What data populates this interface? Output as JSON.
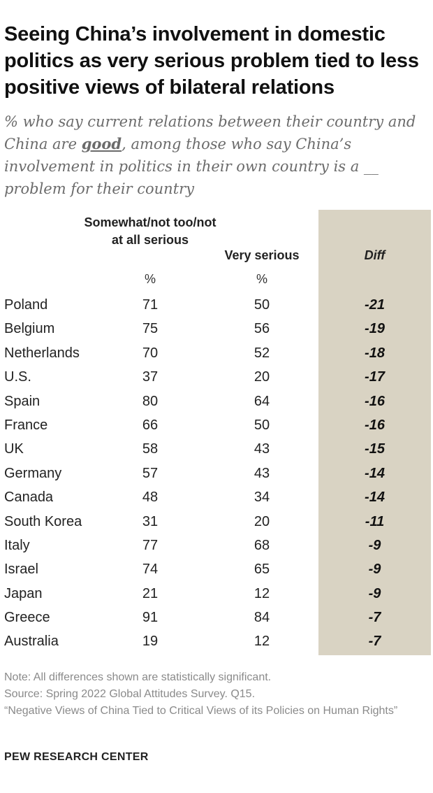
{
  "title": "Seeing China’s involvement in domestic politics as very serious problem tied to less positive views of bilateral relations",
  "subtitle": {
    "part1": "% who say current relations between their country and China are ",
    "emphasis": "good",
    "part2": ", among those who say China’s involvement in politics in their own country is a __ problem for their country"
  },
  "chart_data": {
    "type": "table",
    "columns": [
      "Somewhat/not too/not at all serious",
      "Very serious",
      "Diff"
    ],
    "units": [
      "%",
      "%",
      ""
    ],
    "rows": [
      {
        "country": "Poland",
        "not_serious": "71",
        "very_serious": "50",
        "diff": "-21"
      },
      {
        "country": "Belgium",
        "not_serious": "75",
        "very_serious": "56",
        "diff": "-19"
      },
      {
        "country": "Netherlands",
        "not_serious": "70",
        "very_serious": "52",
        "diff": "-18"
      },
      {
        "country": "U.S.",
        "not_serious": "37",
        "very_serious": "20",
        "diff": "-17"
      },
      {
        "country": "Spain",
        "not_serious": "80",
        "very_serious": "64",
        "diff": "-16"
      },
      {
        "country": "France",
        "not_serious": "66",
        "very_serious": "50",
        "diff": "-16"
      },
      {
        "country": "UK",
        "not_serious": "58",
        "very_serious": "43",
        "diff": "-15"
      },
      {
        "country": "Germany",
        "not_serious": "57",
        "very_serious": "43",
        "diff": "-14"
      },
      {
        "country": "Canada",
        "not_serious": "48",
        "very_serious": "34",
        "diff": "-14"
      },
      {
        "country": "South Korea",
        "not_serious": "31",
        "very_serious": "20",
        "diff": "-11"
      },
      {
        "country": "Italy",
        "not_serious": "77",
        "very_serious": "68",
        "diff": "-9"
      },
      {
        "country": "Israel",
        "not_serious": "74",
        "very_serious": "65",
        "diff": "-9"
      },
      {
        "country": "Japan",
        "not_serious": "21",
        "very_serious": "12",
        "diff": "-9"
      },
      {
        "country": "Greece",
        "not_serious": "91",
        "very_serious": "84",
        "diff": "-7"
      },
      {
        "country": "Australia",
        "not_serious": "19",
        "very_serious": "12",
        "diff": "-7"
      }
    ],
    "colors": {
      "diff_background": "#d9d3c3"
    }
  },
  "notes": {
    "note": "Note: All differences shown are statistically significant.",
    "source": "Source: Spring 2022 Global Attitudes Survey. Q15.",
    "report": "“Negative Views of China Tied to Critical Views of its Policies on Human Rights”"
  },
  "brand": "PEW RESEARCH CENTER"
}
